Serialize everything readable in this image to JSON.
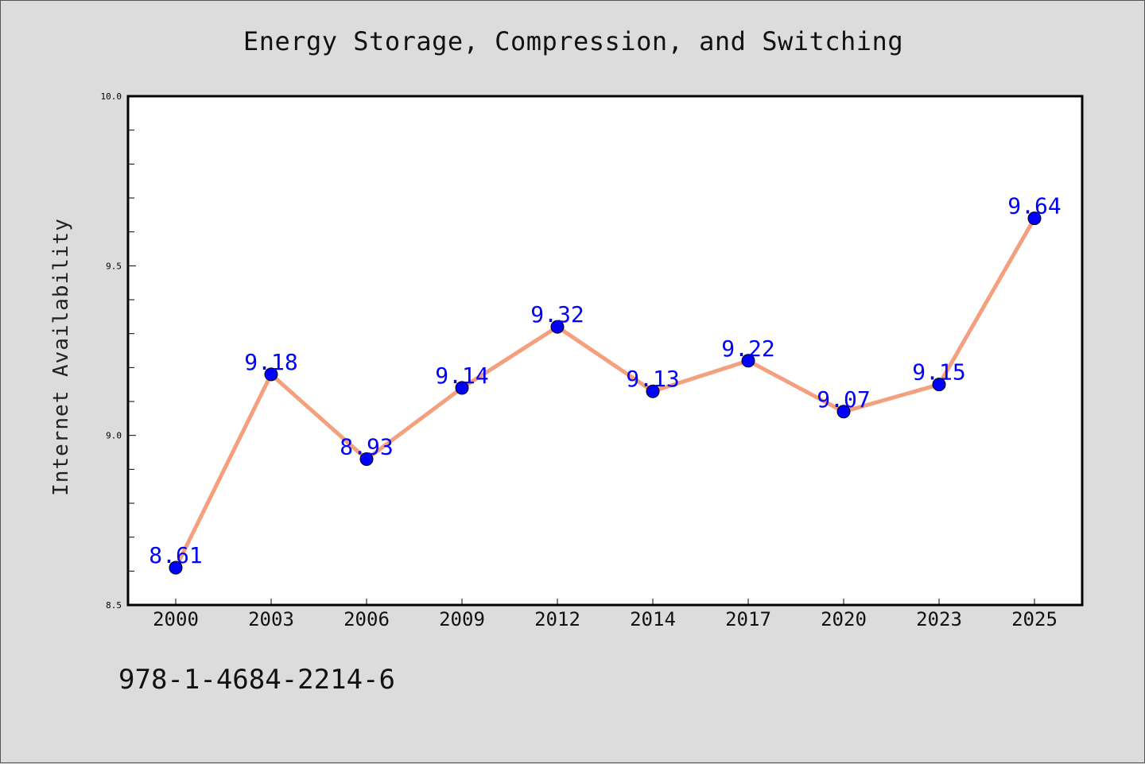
{
  "colors": {
    "background": "#dcdcdc",
    "plot_background": "#ffffff",
    "line": "#f4a07e",
    "marker": "#0000ff",
    "data_label": "#0000ff"
  },
  "footer": {
    "isbn": "978-1-4684-2214-6"
  },
  "chart_data": {
    "type": "line",
    "title": "Energy Storage, Compression, and Switching",
    "xlabel": "",
    "ylabel": "Internet Availability",
    "x": [
      "2000",
      "2003",
      "2006",
      "2009",
      "2012",
      "2014",
      "2017",
      "2020",
      "2023",
      "2025"
    ],
    "series": [
      {
        "values": [
          8.61,
          9.18,
          8.93,
          9.14,
          9.32,
          9.13,
          9.22,
          9.07,
          9.15,
          9.64
        ]
      }
    ],
    "data_labels": [
      "8.61",
      "9.18",
      "8.93",
      "9.14",
      "9.32",
      "9.13",
      "9.22",
      "9.07",
      "9.15",
      "9.64"
    ],
    "ylim": [
      8.5,
      10.0
    ],
    "yticks": [
      "8.5",
      "9.0",
      "9.5",
      "10.0"
    ],
    "grid": false,
    "legend": "none"
  }
}
